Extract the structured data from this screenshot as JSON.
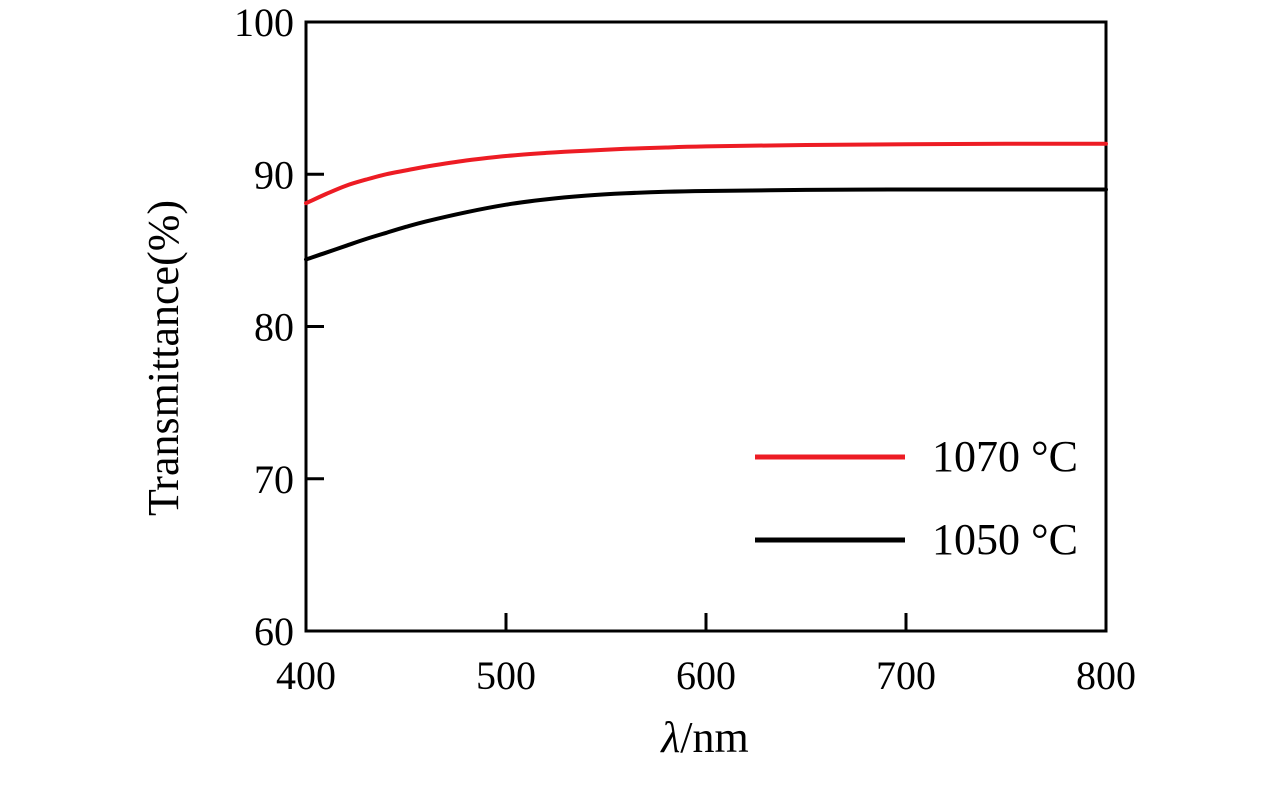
{
  "figure": {
    "background": "#ffffff",
    "axis_color": "#000000"
  },
  "chart_data": {
    "type": "line",
    "title": "",
    "xlabel": "λ/nm",
    "ylabel": "Transmittance(%)",
    "xlim": [
      400,
      800
    ],
    "ylim": [
      60,
      100
    ],
    "x_ticks": [
      400,
      500,
      600,
      700,
      800
    ],
    "y_ticks": [
      60,
      70,
      80,
      90,
      100
    ],
    "grid": false,
    "legend_position": "inside-lower-right",
    "x": [
      400,
      410,
      420,
      430,
      440,
      450,
      460,
      480,
      500,
      520,
      540,
      560,
      580,
      600,
      650,
      700,
      750,
      800
    ],
    "series": [
      {
        "name": "1070 °C",
        "color": "#ed1c24",
        "values": [
          88.1,
          88.7,
          89.25,
          89.65,
          90.0,
          90.25,
          90.5,
          90.9,
          91.2,
          91.4,
          91.55,
          91.67,
          91.76,
          91.83,
          91.92,
          91.97,
          92.0,
          92.0
        ]
      },
      {
        "name": "1050 °C",
        "color": "#000000",
        "values": [
          84.4,
          84.85,
          85.3,
          85.75,
          86.15,
          86.55,
          86.9,
          87.5,
          88.0,
          88.35,
          88.6,
          88.75,
          88.85,
          88.9,
          88.97,
          89.0,
          89.0,
          89.0
        ]
      }
    ]
  }
}
